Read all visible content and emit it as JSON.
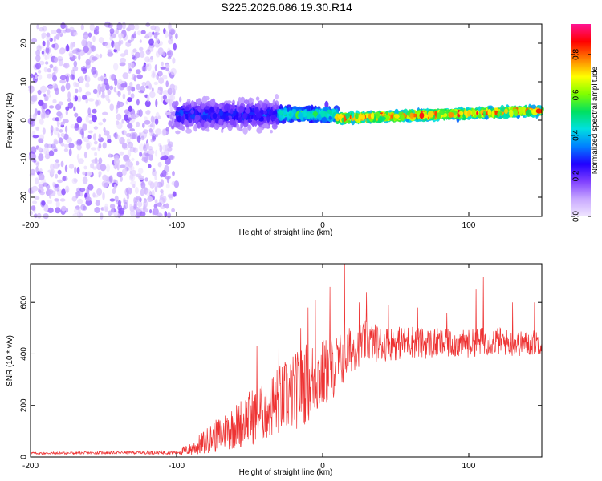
{
  "title": "S225.2026.086.19.30.R14",
  "chart_data": [
    {
      "type": "heatmap",
      "title": "S225.2026.086.19.30.R14",
      "xlabel": "Height of straight line (km)",
      "ylabel": "Frequency (Hz)",
      "xlim": [
        -200,
        150
      ],
      "ylim": [
        -25,
        25
      ],
      "xticks": [
        -200,
        -100,
        0,
        100
      ],
      "yticks": [
        -20,
        -10,
        0,
        10,
        20
      ],
      "colorbar": {
        "label": "Normalized spectral amplitude",
        "range": [
          0.0,
          0.95
        ],
        "ticks": [
          0.0,
          0.2,
          0.4,
          0.6,
          0.8
        ],
        "colormap": [
          "#f0e6ff",
          "#c8a8ff",
          "#8040ff",
          "#2000ff",
          "#0080ff",
          "#00e0e0",
          "#00e060",
          "#80ff00",
          "#ffff00",
          "#ff8000",
          "#ff0000",
          "#ff1493"
        ]
      },
      "regions": [
        {
          "x_range": [
            -200,
            -100
          ],
          "frequency_spread_hz": [
            -25,
            25
          ],
          "amplitude_range": [
            0.02,
            0.18
          ],
          "description": "noise"
        },
        {
          "x_range": [
            -100,
            -30
          ],
          "frequency_center_hz": 1.5,
          "frequency_spread_hz": [
            -7,
            8
          ],
          "amplitude_range": [
            0.05,
            0.35
          ]
        },
        {
          "x_range": [
            -30,
            10
          ],
          "frequency_center_hz": 1.5,
          "frequency_spread_hz": [
            -3,
            4
          ],
          "amplitude_range": [
            0.2,
            0.6
          ]
        },
        {
          "x_range": [
            10,
            150
          ],
          "frequency_center_hz": 0.5,
          "frequency_end_hz": 2.5,
          "frequency_spread_hz": [
            -2,
            2
          ],
          "amplitude_range": [
            0.3,
            0.95
          ]
        }
      ]
    },
    {
      "type": "line",
      "xlabel": "Height of straight line (km)",
      "ylabel": "SNR (10 * v/v)",
      "xlim": [
        -200,
        150
      ],
      "ylim": [
        0,
        750
      ],
      "xticks": [
        -200,
        -100,
        0,
        100
      ],
      "yticks": [
        0,
        200,
        400,
        600
      ],
      "color": "#ee3333",
      "series": [
        {
          "name": "SNR",
          "x": [
            -200,
            -180,
            -160,
            -140,
            -120,
            -100,
            -90,
            -80,
            -70,
            -60,
            -50,
            -40,
            -30,
            -20,
            -10,
            0,
            10,
            20,
            30,
            40,
            50,
            60,
            70,
            80,
            90,
            100,
            110,
            120,
            130,
            140,
            150
          ],
          "values": [
            15,
            15,
            16,
            17,
            17,
            18,
            30,
            60,
            90,
            120,
            150,
            180,
            220,
            250,
            290,
            320,
            360,
            420,
            450,
            440,
            440,
            450,
            440,
            440,
            440,
            440,
            450,
            450,
            440,
            440,
            450
          ],
          "noise": [
            5,
            5,
            5,
            5,
            6,
            8,
            25,
            50,
            70,
            90,
            110,
            120,
            140,
            150,
            160,
            140,
            120,
            90,
            80,
            70,
            65,
            65,
            60,
            60,
            55,
            55,
            55,
            55,
            50,
            50,
            50
          ],
          "peaks": [
            [
              -45,
              430
            ],
            [
              -30,
              460
            ],
            [
              -15,
              500
            ],
            [
              -10,
              580
            ],
            [
              -5,
              610
            ],
            [
              5,
              660
            ],
            [
              15,
              750
            ],
            [
              25,
              600
            ],
            [
              30,
              640
            ],
            [
              45,
              590
            ],
            [
              65,
              580
            ],
            [
              85,
              560
            ],
            [
              105,
              650
            ],
            [
              110,
              700
            ],
            [
              130,
              600
            ],
            [
              145,
              600
            ]
          ]
        }
      ]
    }
  ]
}
